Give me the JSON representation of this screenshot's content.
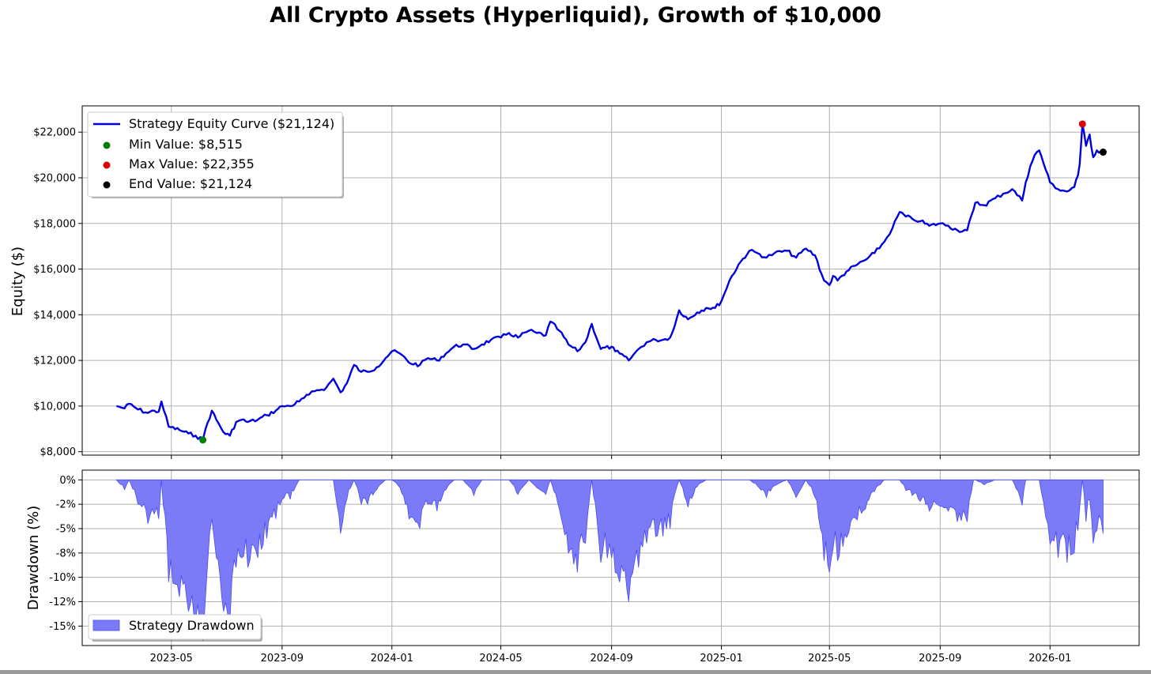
{
  "title": "All Crypto Assets (Hyperliquid), Growth of $10,000",
  "chart_data": [
    {
      "type": "line",
      "ylabel": "Equity ($)",
      "xlabel": "",
      "xlim": [
        "2023-01-22",
        "2026-04-10"
      ],
      "ylim": [
        7850,
        23150
      ],
      "grid": true,
      "legend_position": "top-left",
      "x_ticks": [
        "2023-05",
        "2023-09",
        "2024-01",
        "2024-05",
        "2024-09",
        "2025-01",
        "2025-05",
        "2025-09",
        "2026-01"
      ],
      "y_ticks": [
        {
          "value": 8000,
          "label": "$8,000"
        },
        {
          "value": 10000,
          "label": "$10,000"
        },
        {
          "value": 12000,
          "label": "$12,000"
        },
        {
          "value": 14000,
          "label": "$14,000"
        },
        {
          "value": 16000,
          "label": "$16,000"
        },
        {
          "value": 18000,
          "label": "$18,000"
        },
        {
          "value": 20000,
          "label": "$20,000"
        },
        {
          "value": 22000,
          "label": "$22,000"
        }
      ],
      "series": [
        {
          "name": "Strategy Equity Curve ($21,124)",
          "color": "#0000dd",
          "x": [
            "2023-03-01",
            "2023-03-10",
            "2023-03-15",
            "2023-03-25",
            "2023-04-05",
            "2023-04-12",
            "2023-04-17",
            "2023-04-20",
            "2023-04-28",
            "2023-05-10",
            "2023-05-20",
            "2023-05-28",
            "2023-06-05",
            "2023-06-08",
            "2023-06-15",
            "2023-06-20",
            "2023-06-28",
            "2023-07-05",
            "2023-07-12",
            "2023-07-18",
            "2023-07-25",
            "2023-08-05",
            "2023-08-15",
            "2023-08-25",
            "2023-09-01",
            "2023-09-10",
            "2023-09-20",
            "2023-10-01",
            "2023-10-10",
            "2023-10-20",
            "2023-10-28",
            "2023-11-05",
            "2023-11-12",
            "2023-11-20",
            "2023-11-28",
            "2023-12-05",
            "2023-12-15",
            "2023-12-25",
            "2024-01-01",
            "2024-01-10",
            "2024-01-20",
            "2024-02-01",
            "2024-02-10",
            "2024-02-20",
            "2024-03-01",
            "2024-03-10",
            "2024-03-20",
            "2024-04-01",
            "2024-04-10",
            "2024-04-20",
            "2024-05-01",
            "2024-05-10",
            "2024-05-20",
            "2024-06-01",
            "2024-06-10",
            "2024-06-20",
            "2024-06-25",
            "2024-07-05",
            "2024-07-15",
            "2024-07-25",
            "2024-08-03",
            "2024-08-10",
            "2024-08-20",
            "2024-09-01",
            "2024-09-05",
            "2024-09-10",
            "2024-09-20",
            "2024-10-01",
            "2024-10-10",
            "2024-10-20",
            "2024-10-28",
            "2024-11-05",
            "2024-11-10",
            "2024-11-15",
            "2024-11-25",
            "2024-12-05",
            "2024-12-15",
            "2024-12-25",
            "2025-01-01",
            "2025-01-10",
            "2025-01-20",
            "2025-02-01",
            "2025-02-10",
            "2025-02-20",
            "2025-03-01",
            "2025-03-15",
            "2025-03-25",
            "2025-04-05",
            "2025-04-15",
            "2025-04-25",
            "2025-05-01",
            "2025-05-05",
            "2025-05-10",
            "2025-05-20",
            "2025-06-01",
            "2025-06-10",
            "2025-06-20",
            "2025-07-01",
            "2025-07-10",
            "2025-07-18",
            "2025-07-25",
            "2025-08-01",
            "2025-08-10",
            "2025-08-20",
            "2025-09-01",
            "2025-09-10",
            "2025-09-20",
            "2025-10-01",
            "2025-10-08",
            "2025-10-10",
            "2025-10-20",
            "2025-11-01",
            "2025-11-10",
            "2025-11-20",
            "2025-12-01",
            "2025-12-05",
            "2025-12-10",
            "2025-12-15",
            "2025-12-20",
            "2026-01-01",
            "2026-01-10",
            "2026-01-20",
            "2026-01-28",
            "2026-02-01",
            "2026-02-03",
            "2026-02-06",
            "2026-02-10",
            "2026-02-14",
            "2026-02-18",
            "2026-02-22",
            "2026-03-01"
          ],
          "y": [
            10000,
            9900,
            10100,
            9850,
            9700,
            9800,
            9750,
            10200,
            9100,
            8950,
            8800,
            8700,
            8515,
            9000,
            9800,
            9400,
            8850,
            8700,
            9300,
            9400,
            9300,
            9400,
            9600,
            9800,
            10000,
            10000,
            10200,
            10500,
            10700,
            10800,
            11200,
            10600,
            11000,
            11800,
            11500,
            11500,
            11700,
            12100,
            12400,
            12300,
            11900,
            11800,
            12100,
            12000,
            12300,
            12600,
            12700,
            12500,
            12700,
            12900,
            13000,
            13200,
            13000,
            13300,
            13200,
            13100,
            13700,
            13300,
            12700,
            12400,
            12800,
            13600,
            12500,
            12600,
            12400,
            12300,
            12000,
            12500,
            12800,
            12900,
            12900,
            13000,
            13500,
            14200,
            13800,
            14100,
            14300,
            14300,
            14600,
            15500,
            16200,
            16800,
            16700,
            16500,
            16700,
            16800,
            16500,
            16900,
            16600,
            15500,
            15300,
            15700,
            15500,
            15900,
            16200,
            16400,
            16700,
            17200,
            17800,
            18500,
            18300,
            18200,
            18100,
            17900,
            18000,
            17900,
            17700,
            17700,
            18600,
            18900,
            18800,
            19100,
            19300,
            19500,
            19000,
            19800,
            20500,
            21000,
            21200,
            19800,
            19500,
            19400,
            19600,
            20100,
            20600,
            22355,
            21400,
            21900,
            20900,
            21200,
            21124
          ]
        }
      ],
      "markers": [
        {
          "label": "Min Value: $8,515",
          "x": "2023-06-05",
          "y": 8515,
          "color": "#008000"
        },
        {
          "label": "Max Value: $22,355",
          "x": "2026-02-06",
          "y": 22355,
          "color": "#dd0000"
        },
        {
          "label": "End Value: $21,124",
          "x": "2026-03-01",
          "y": 21124,
          "color": "#000000"
        }
      ]
    },
    {
      "type": "area",
      "ylabel": "Drawdown (%)",
      "xlabel": "",
      "xlim": [
        "2023-01-22",
        "2026-04-10"
      ],
      "ylim": [
        -17.0,
        1.0
      ],
      "grid": true,
      "legend_position": "bottom-left",
      "y_ticks": [
        {
          "value": 0,
          "label": "0%"
        },
        {
          "value": -2.5,
          "label": "-2%"
        },
        {
          "value": -5,
          "label": "-5%"
        },
        {
          "value": -7.5,
          "label": "-8%"
        },
        {
          "value": -10,
          "label": "-10%"
        },
        {
          "value": -12.5,
          "label": "-12%"
        },
        {
          "value": -15,
          "label": "-15%"
        }
      ],
      "series": [
        {
          "name": "Strategy Drawdown",
          "color": "#7b7bf7",
          "x": [
            "2023-03-01",
            "2023-03-10",
            "2023-03-15",
            "2023-03-25",
            "2023-04-05",
            "2023-04-12",
            "2023-04-17",
            "2023-04-20",
            "2023-04-28",
            "2023-05-10",
            "2023-05-20",
            "2023-05-28",
            "2023-06-05",
            "2023-06-08",
            "2023-06-15",
            "2023-06-20",
            "2023-06-28",
            "2023-07-05",
            "2023-07-12",
            "2023-07-18",
            "2023-07-25",
            "2023-08-05",
            "2023-08-15",
            "2023-08-25",
            "2023-09-01",
            "2023-09-10",
            "2023-09-20",
            "2023-10-01",
            "2023-10-10",
            "2023-10-20",
            "2023-10-28",
            "2023-11-05",
            "2023-11-12",
            "2023-11-20",
            "2023-11-28",
            "2023-12-05",
            "2023-12-15",
            "2023-12-25",
            "2024-01-01",
            "2024-01-10",
            "2024-01-20",
            "2024-02-01",
            "2024-02-10",
            "2024-02-20",
            "2024-03-01",
            "2024-03-10",
            "2024-03-20",
            "2024-04-01",
            "2024-04-10",
            "2024-04-20",
            "2024-05-01",
            "2024-05-10",
            "2024-05-20",
            "2024-06-01",
            "2024-06-10",
            "2024-06-20",
            "2024-06-25",
            "2024-07-05",
            "2024-07-15",
            "2024-07-25",
            "2024-08-03",
            "2024-08-10",
            "2024-08-20",
            "2024-09-01",
            "2024-09-05",
            "2024-09-10",
            "2024-09-20",
            "2024-10-01",
            "2024-10-10",
            "2024-10-20",
            "2024-10-28",
            "2024-11-05",
            "2024-11-10",
            "2024-11-15",
            "2024-11-25",
            "2024-12-05",
            "2024-12-15",
            "2024-12-25",
            "2025-01-01",
            "2025-01-10",
            "2025-01-20",
            "2025-02-01",
            "2025-02-10",
            "2025-02-20",
            "2025-03-01",
            "2025-03-15",
            "2025-03-25",
            "2025-04-05",
            "2025-04-15",
            "2025-04-25",
            "2025-05-01",
            "2025-05-05",
            "2025-05-10",
            "2025-05-20",
            "2025-06-01",
            "2025-06-10",
            "2025-06-20",
            "2025-07-01",
            "2025-07-10",
            "2025-07-18",
            "2025-07-25",
            "2025-08-01",
            "2025-08-10",
            "2025-08-20",
            "2025-09-01",
            "2025-09-10",
            "2025-09-20",
            "2025-10-01",
            "2025-10-08",
            "2025-10-10",
            "2025-10-20",
            "2025-11-01",
            "2025-11-10",
            "2025-11-20",
            "2025-12-01",
            "2025-12-05",
            "2025-12-10",
            "2025-12-15",
            "2025-12-20",
            "2026-01-01",
            "2026-01-10",
            "2026-01-20",
            "2026-01-28",
            "2026-02-01",
            "2026-02-03",
            "2026-02-06",
            "2026-02-10",
            "2026-02-14",
            "2026-02-18",
            "2026-02-22",
            "2026-03-01"
          ],
          "y": [
            0,
            -1.0,
            0,
            -2.5,
            -4.5,
            -3.5,
            -4.0,
            0,
            -10.5,
            -12.0,
            -13.5,
            -14.5,
            -16.5,
            -12.0,
            -4.0,
            -8.0,
            -13.5,
            -14.8,
            -9.0,
            -8.0,
            -9.0,
            -8.0,
            -6.0,
            -4.0,
            -2.0,
            -2.0,
            0,
            0,
            0,
            0,
            0,
            -5.5,
            -2.0,
            0,
            -2.5,
            -2.5,
            -1.0,
            0,
            0,
            -0.8,
            -4.0,
            -5.0,
            -2.5,
            -3.2,
            -1.0,
            0,
            0,
            -1.6,
            0,
            0,
            0,
            0,
            -1.5,
            0,
            -0.8,
            -1.5,
            0,
            -3.0,
            -7.5,
            -9.5,
            -6.5,
            0,
            -8.5,
            -8.0,
            -9.5,
            -10.5,
            -12.5,
            -9.0,
            -6.5,
            -5.8,
            -5.8,
            -5.0,
            -1.5,
            0,
            -2.8,
            -0.7,
            0,
            0,
            0,
            0,
            0,
            0,
            -0.6,
            -1.8,
            -0.6,
            0,
            -1.8,
            0,
            -1.8,
            -8.3,
            -9.5,
            -7.1,
            -8.3,
            -5.9,
            -4.1,
            -3.0,
            -1.2,
            0,
            0,
            0,
            -1.1,
            -1.6,
            -2.2,
            -3.2,
            -2.7,
            -3.2,
            -4.3,
            -4.3,
            0,
            0,
            -0.5,
            0,
            0,
            0,
            -2.6,
            0,
            0,
            0,
            0,
            -6.6,
            -8.0,
            -8.5,
            -7.5,
            -5.2,
            -2.8,
            0,
            -4.3,
            -2.0,
            -6.5,
            -5.2,
            -5.5
          ]
        }
      ]
    }
  ]
}
